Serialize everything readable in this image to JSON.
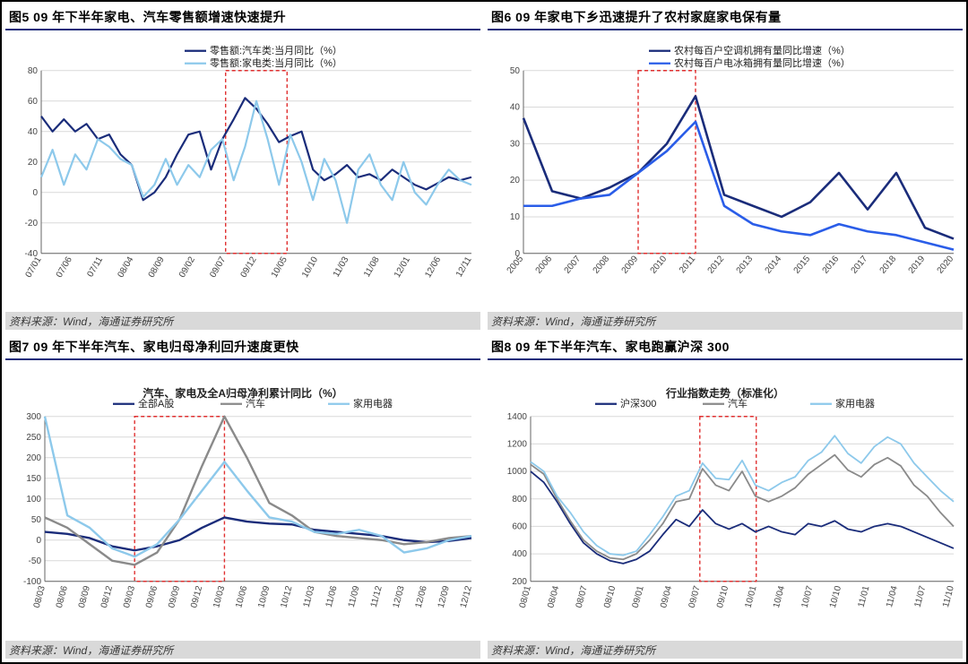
{
  "source_text": "资料来源：Wind，海通证券研究所",
  "colors": {
    "dark_navy": "#1a2c7a",
    "medium_blue": "#2a5de8",
    "light_blue": "#8dc9eb",
    "gray": "#8a8a8a",
    "highlight_red": "#e03030",
    "grid": "#d9d9d9"
  },
  "chart5": {
    "title": "图5  09 年下半年家电、汽车零售额增速快速提升",
    "type": "line",
    "ylim": [
      -40,
      80
    ],
    "ytick": [
      -40,
      -20,
      0,
      20,
      40,
      60,
      80
    ],
    "x_labels": [
      "07/01",
      "07/06",
      "07/11",
      "08/04",
      "08/09",
      "09/02",
      "09/07",
      "09/12",
      "10/05",
      "10/10",
      "11/03",
      "11/08",
      "12/01",
      "12/06",
      "12/11"
    ],
    "highlight_x": [
      "09/07",
      "10/05"
    ],
    "legend": [
      {
        "label": "零售额:汽车类:当月同比（%）",
        "color": "#1a2c7a"
      },
      {
        "label": "零售额:家电类:当月同比（%）",
        "color": "#8dc9eb"
      }
    ],
    "series": {
      "auto": [
        50,
        40,
        48,
        40,
        45,
        35,
        38,
        25,
        18,
        -5,
        0,
        10,
        25,
        38,
        40,
        15,
        35,
        48,
        62,
        55,
        45,
        33,
        37,
        40,
        15,
        8,
        12,
        18,
        10,
        12,
        8,
        15,
        10,
        5,
        2,
        6,
        10,
        8,
        10
      ],
      "appliance": [
        10,
        28,
        5,
        25,
        15,
        35,
        30,
        22,
        18,
        -3,
        5,
        22,
        5,
        18,
        10,
        28,
        35,
        8,
        30,
        60,
        35,
        5,
        38,
        20,
        -5,
        22,
        8,
        -20,
        15,
        25,
        5,
        -5,
        20,
        0,
        -8,
        5,
        15,
        8,
        5
      ]
    }
  },
  "chart6": {
    "title": "图6  09 年家电下乡迅速提升了农村家庭家电保有量",
    "type": "line",
    "ylim": [
      0,
      50
    ],
    "ytick": [
      0,
      10,
      20,
      30,
      40,
      50
    ],
    "x_labels": [
      "2005",
      "2006",
      "2007",
      "2008",
      "2009",
      "2010",
      "2011",
      "2012",
      "2013",
      "2014",
      "2015",
      "2016",
      "2017",
      "2018",
      "2019",
      "2020"
    ],
    "highlight_x": [
      "2009",
      "2011"
    ],
    "legend": [
      {
        "label": "农村每百户空调机拥有量同比增速（%）",
        "color": "#1a2c7a"
      },
      {
        "label": "农村每百户电冰箱拥有量同比增速（%）",
        "color": "#2a5de8"
      }
    ],
    "series": {
      "ac": [
        37,
        17,
        15,
        18,
        22,
        30,
        43,
        16,
        13,
        10,
        14,
        22,
        12,
        22,
        7,
        4
      ],
      "fridge": [
        13,
        13,
        15,
        16,
        22,
        28,
        36,
        13,
        8,
        6,
        5,
        8,
        6,
        5,
        3,
        1
      ]
    }
  },
  "chart7": {
    "title": "图7  09 年下半年汽车、家电归母净利回升速度更快",
    "subtitle": "汽车、家电及全A归母净利累计同比（%）",
    "type": "line",
    "ylim": [
      -100,
      300
    ],
    "ytick": [
      -100,
      -50,
      0,
      50,
      100,
      150,
      200,
      250,
      300
    ],
    "x_labels": [
      "08/03",
      "08/06",
      "08/09",
      "08/12",
      "09/03",
      "09/06",
      "09/09",
      "09/12",
      "10/03",
      "10/06",
      "10/09",
      "10/12",
      "11/03",
      "11/06",
      "11/09",
      "11/12",
      "12/03",
      "12/06",
      "12/09",
      "12/12"
    ],
    "highlight_x": [
      "09/03",
      "10/03"
    ],
    "legend": [
      {
        "label": "全部A股",
        "color": "#1a2c7a"
      },
      {
        "label": "汽车",
        "color": "#8a8a8a"
      },
      {
        "label": "家用电器",
        "color": "#8dc9eb"
      }
    ],
    "series": {
      "all": [
        20,
        15,
        5,
        -15,
        -25,
        -15,
        0,
        30,
        55,
        45,
        40,
        38,
        25,
        20,
        15,
        10,
        0,
        -5,
        -2,
        5
      ],
      "auto": [
        55,
        30,
        -10,
        -50,
        -60,
        -30,
        50,
        180,
        300,
        200,
        90,
        60,
        20,
        10,
        5,
        0,
        -10,
        -5,
        5,
        10
      ],
      "appl": [
        300,
        60,
        30,
        -20,
        -40,
        -10,
        50,
        120,
        190,
        120,
        55,
        45,
        20,
        15,
        25,
        10,
        -30,
        -20,
        0,
        10
      ]
    }
  },
  "chart8": {
    "title": "图8  09 年下半年汽车、家电跑赢沪深 300",
    "subtitle": "行业指数走势（标准化）",
    "type": "line",
    "ylim": [
      200,
      1400
    ],
    "ytick": [
      200,
      400,
      600,
      800,
      1000,
      1200,
      1400
    ],
    "x_labels": [
      "08/01",
      "08/04",
      "08/07",
      "08/10",
      "09/01",
      "09/04",
      "09/07",
      "09/10",
      "10/01",
      "10/04",
      "10/07",
      "10/10",
      "11/01",
      "11/04",
      "11/07",
      "11/10"
    ],
    "highlight_x": [
      "09/07",
      "10/01"
    ],
    "legend": [
      {
        "label": "沪深300",
        "color": "#1a2c7a"
      },
      {
        "label": "汽车",
        "color": "#8a8a8a"
      },
      {
        "label": "家用电器",
        "color": "#8dc9eb"
      }
    ],
    "series": {
      "csi": [
        1000,
        920,
        780,
        620,
        480,
        400,
        350,
        330,
        360,
        420,
        540,
        650,
        600,
        720,
        620,
        580,
        620,
        560,
        600,
        560,
        540,
        620,
        600,
        640,
        580,
        560,
        600,
        620,
        600,
        560,
        520,
        480,
        440
      ],
      "auto": [
        1050,
        980,
        800,
        640,
        500,
        420,
        370,
        360,
        400,
        500,
        620,
        780,
        800,
        1020,
        900,
        860,
        1000,
        820,
        780,
        820,
        880,
        980,
        1050,
        1120,
        1010,
        960,
        1050,
        1100,
        1040,
        900,
        820,
        700,
        600
      ],
      "appl": [
        1070,
        1000,
        820,
        700,
        560,
        460,
        400,
        390,
        420,
        540,
        670,
        820,
        860,
        1060,
        950,
        940,
        1080,
        900,
        860,
        920,
        960,
        1080,
        1140,
        1260,
        1130,
        1060,
        1180,
        1250,
        1200,
        1060,
        960,
        860,
        780
      ]
    }
  }
}
